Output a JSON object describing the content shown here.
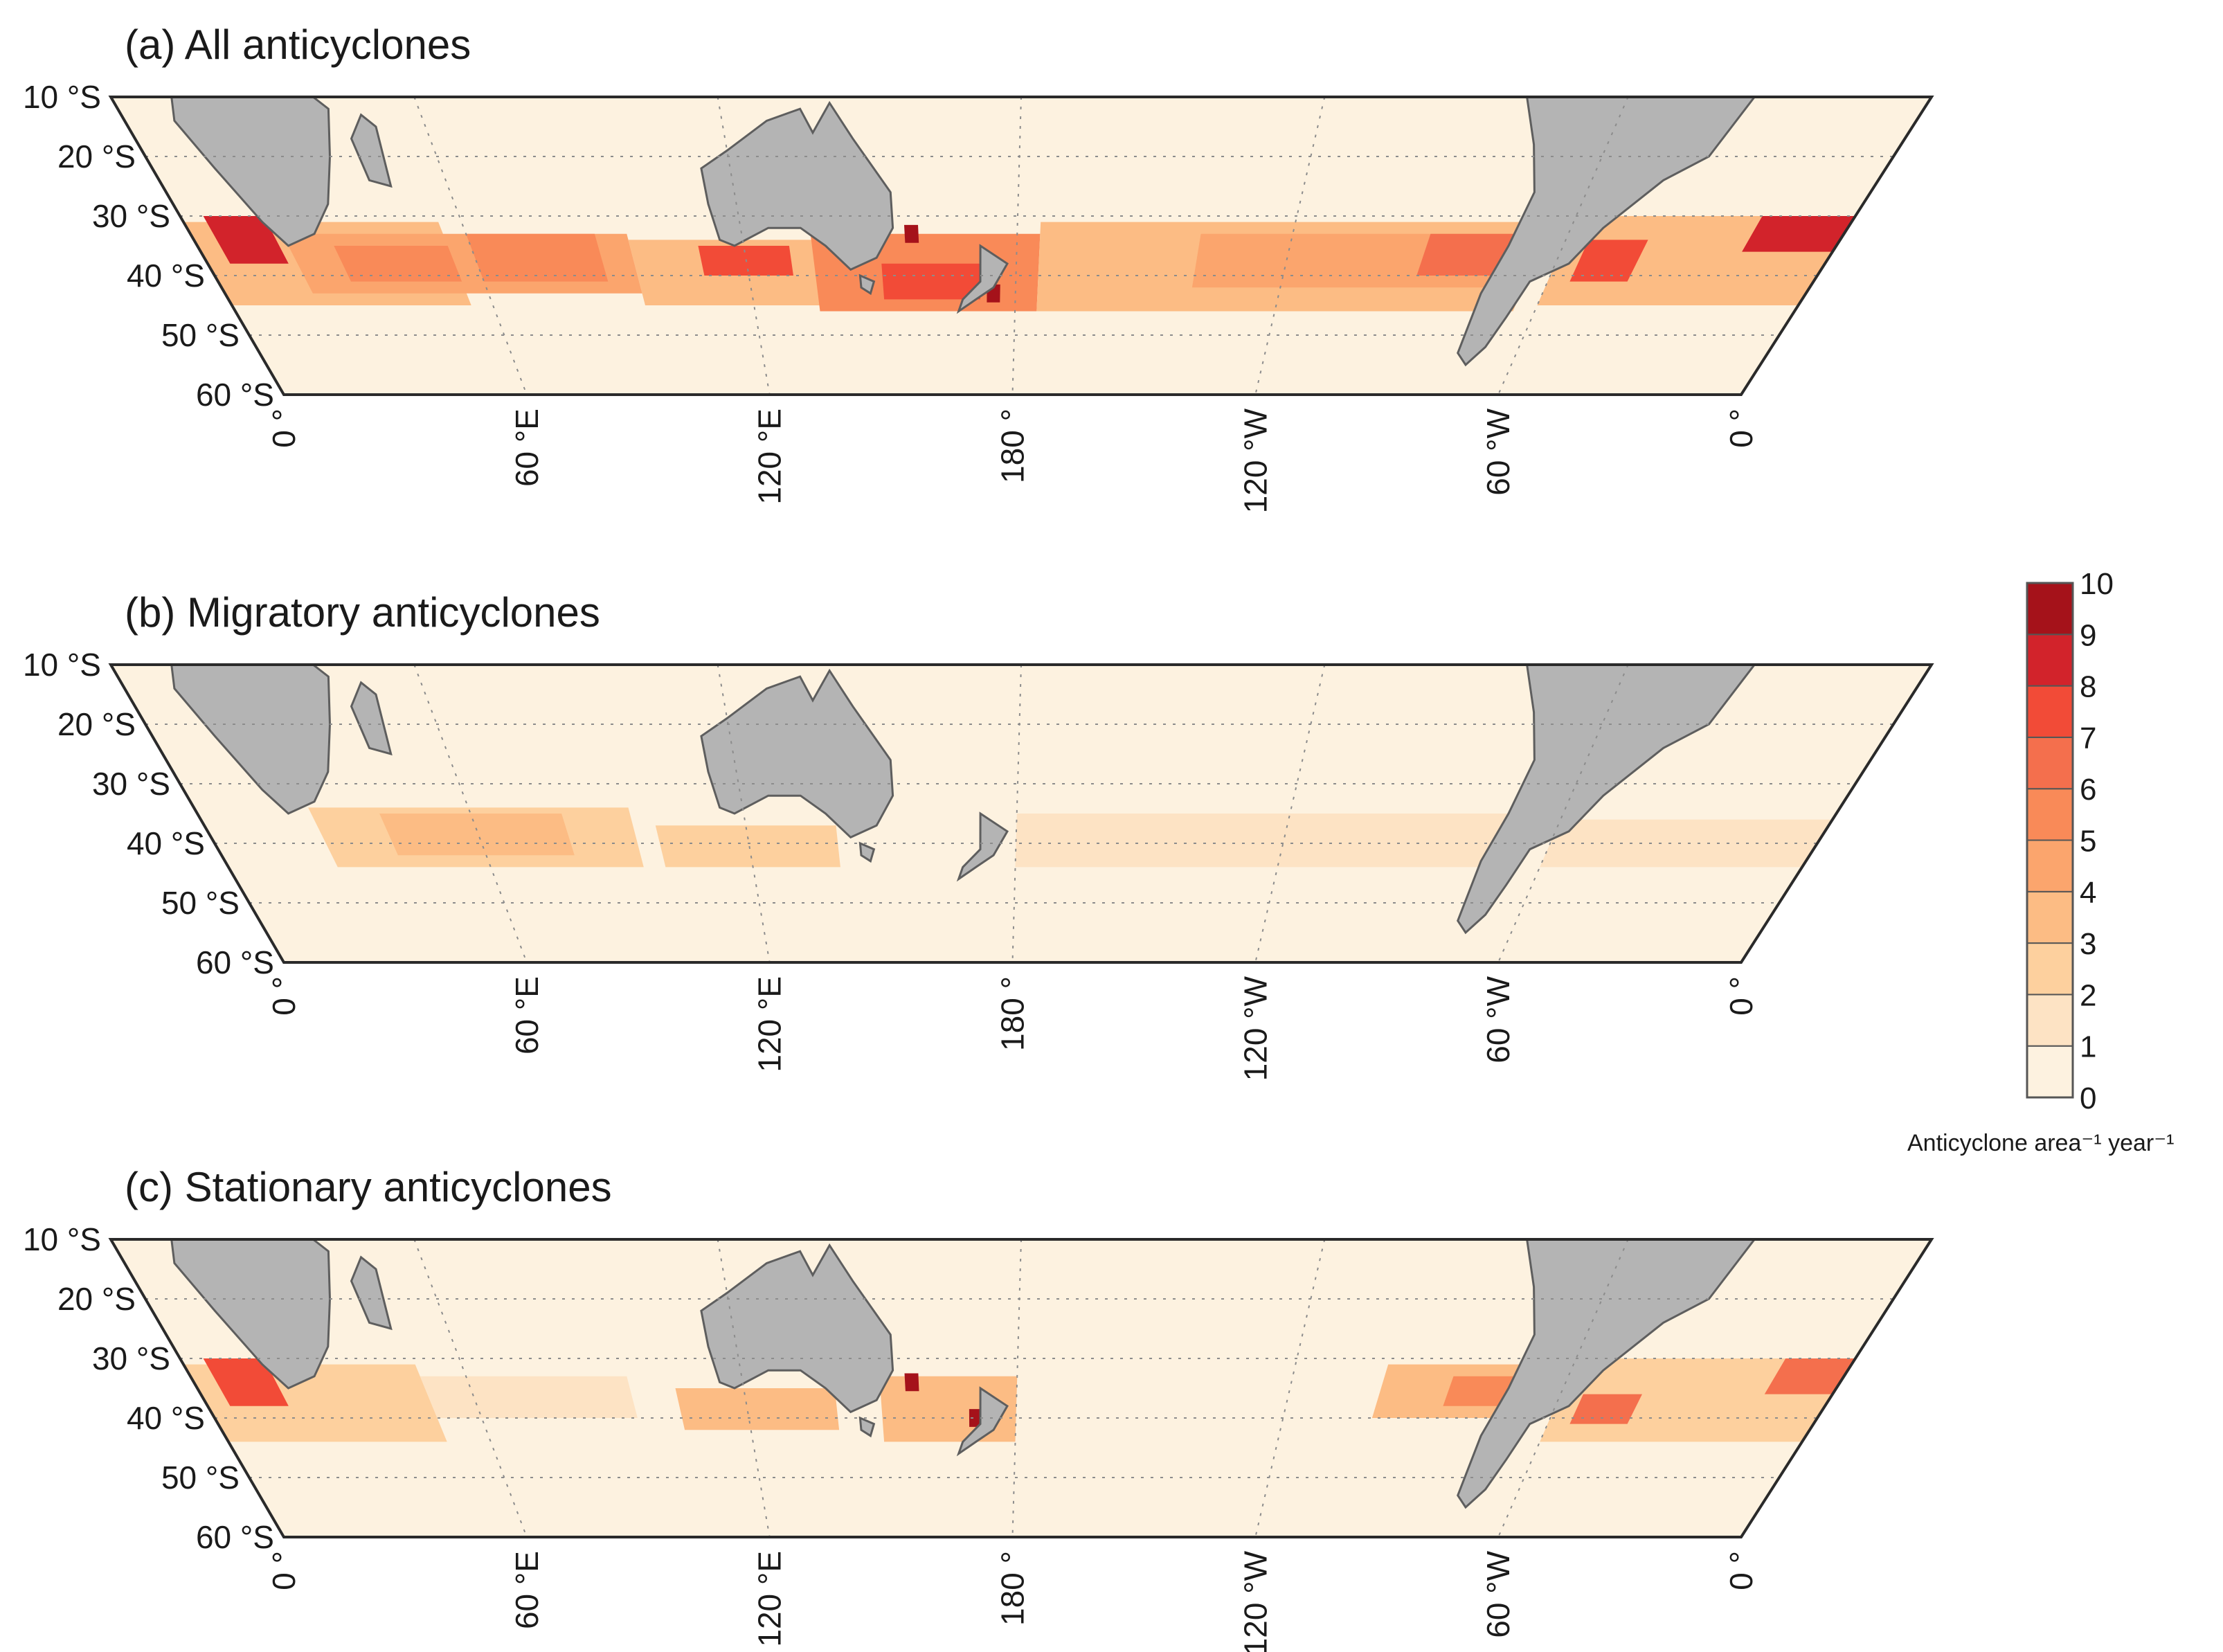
{
  "figure": {
    "type": "map",
    "projection": "curved band (Southern Hemisphere, 10°S–60°S)",
    "panels": [
      {
        "id": "a",
        "title": "(a) All anticyclones",
        "bands": [
          {
            "lon1": 0,
            "lon2": 360,
            "lat1": 28,
            "lat2": 48,
            "level": 1
          },
          {
            "lon1": 0,
            "lon2": 55,
            "lat1": 31,
            "lat2": 45,
            "level": 4
          },
          {
            "lon1": 5,
            "lon2": 18,
            "lat1": 30,
            "lat2": 38,
            "level": 9
          },
          {
            "lon1": 20,
            "lon2": 95,
            "lat1": 33,
            "lat2": 43,
            "level": 5
          },
          {
            "lon1": 30,
            "lon2": 55,
            "lat1": 35,
            "lat2": 41,
            "level": 6
          },
          {
            "lon1": 60,
            "lon2": 88,
            "lat1": 33,
            "lat2": 41,
            "level": 6
          },
          {
            "lon1": 95,
            "lon2": 140,
            "lat1": 34,
            "lat2": 45,
            "level": 4
          },
          {
            "lon1": 110,
            "lon2": 130,
            "lat1": 35,
            "lat2": 40,
            "level": 8
          },
          {
            "lon1": 135,
            "lon2": 185,
            "lat1": 33,
            "lat2": 46,
            "level": 6
          },
          {
            "lon1": 150,
            "lon2": 172,
            "lat1": 38,
            "lat2": 44,
            "level": 8
          },
          {
            "lon1": 185,
            "lon2": 295,
            "lat1": 31,
            "lat2": 46,
            "level": 4
          },
          {
            "lon1": 220,
            "lon2": 288,
            "lat1": 33,
            "lat2": 42,
            "level": 5
          },
          {
            "lon1": 270,
            "lon2": 290,
            "lat1": 33,
            "lat2": 40,
            "level": 7
          },
          {
            "lon1": 300,
            "lon2": 360,
            "lat1": 30,
            "lat2": 45,
            "level": 4
          },
          {
            "lon1": 305,
            "lon2": 318,
            "lat1": 34,
            "lat2": 41,
            "level": 8
          },
          {
            "lon1": 340,
            "lon2": 360,
            "lat1": 30,
            "lat2": 36,
            "level": 9
          },
          {
            "lon1": 0,
            "lon2": 360,
            "lat1": 46,
            "lat2": 56,
            "level": 0
          }
        ]
      },
      {
        "id": "b",
        "title": "(b) Migratory anticyclones",
        "bands": [
          {
            "lon1": 0,
            "lon2": 360,
            "lat1": 33,
            "lat2": 47,
            "level": 1
          },
          {
            "lon1": 25,
            "lon2": 95,
            "lat1": 34,
            "lat2": 44,
            "level": 3
          },
          {
            "lon1": 40,
            "lon2": 80,
            "lat1": 35,
            "lat2": 42,
            "level": 4
          },
          {
            "lon1": 100,
            "lon2": 140,
            "lat1": 37,
            "lat2": 44,
            "level": 3
          },
          {
            "lon1": 180,
            "lon2": 290,
            "lat1": 35,
            "lat2": 44,
            "level": 2
          },
          {
            "lon1": 300,
            "lon2": 360,
            "lat1": 36,
            "lat2": 44,
            "level": 2
          }
        ]
      },
      {
        "id": "c",
        "title": "(c) Stationary anticyclones",
        "bands": [
          {
            "lon1": 0,
            "lon2": 360,
            "lat1": 29,
            "lat2": 46,
            "level": 1
          },
          {
            "lon1": 0,
            "lon2": 50,
            "lat1": 31,
            "lat2": 44,
            "level": 3
          },
          {
            "lon1": 5,
            "lon2": 18,
            "lat1": 30,
            "lat2": 38,
            "level": 8
          },
          {
            "lon1": 50,
            "lon2": 95,
            "lat1": 33,
            "lat2": 40,
            "level": 2
          },
          {
            "lon1": 105,
            "lon2": 140,
            "lat1": 35,
            "lat2": 42,
            "level": 4
          },
          {
            "lon1": 150,
            "lon2": 180,
            "lat1": 33,
            "lat2": 44,
            "level": 4
          },
          {
            "lon1": 260,
            "lon2": 292,
            "lat1": 31,
            "lat2": 40,
            "level": 4
          },
          {
            "lon1": 275,
            "lon2": 290,
            "lat1": 33,
            "lat2": 38,
            "level": 6
          },
          {
            "lon1": 300,
            "lon2": 360,
            "lat1": 30,
            "lat2": 44,
            "level": 3
          },
          {
            "lon1": 305,
            "lon2": 318,
            "lat1": 36,
            "lat2": 41,
            "level": 7
          },
          {
            "lon1": 345,
            "lon2": 360,
            "lat1": 30,
            "lat2": 36,
            "level": 7
          }
        ]
      }
    ],
    "hotspots": {
      "a": [
        {
          "lon": 157,
          "lat": 33,
          "level": 10
        },
        {
          "lon": 175,
          "lat": 43,
          "level": 10
        }
      ],
      "b": [],
      "c": [
        {
          "lon": 157,
          "lat": 34,
          "level": 10
        },
        {
          "lon": 171,
          "lat": 40,
          "level": 10
        }
      ]
    },
    "lat_labels": [
      "10 °S",
      "20 °S",
      "30 °S",
      "40 °S",
      "50 °S",
      "60 °S"
    ],
    "lat_values": [
      10,
      20,
      30,
      40,
      50,
      60
    ],
    "lon_labels": [
      "0 °",
      "60 °E",
      "120 °E",
      "180 °",
      "120 °W",
      "60 °W",
      "0 °"
    ],
    "lon_values": [
      0,
      60,
      120,
      180,
      240,
      300,
      360
    ]
  },
  "colorbar": {
    "ticks": [
      "0",
      "1",
      "2",
      "3",
      "4",
      "5",
      "6",
      "7",
      "8",
      "9",
      "10"
    ],
    "colors": [
      "#fdf2e0",
      "#fde3c4",
      "#fdd09e",
      "#fcbc84",
      "#fba56d",
      "#f98a58",
      "#f46f4d",
      "#f24b37",
      "#d2232b",
      "#a5121a"
    ],
    "unit_label": "Anticyclone area⁻¹ year⁻¹"
  },
  "colors": {
    "background": "#fdf2e0",
    "land": "#b4b4b4",
    "coast": "#5e5e5e",
    "grid": "#8c8c8c"
  }
}
